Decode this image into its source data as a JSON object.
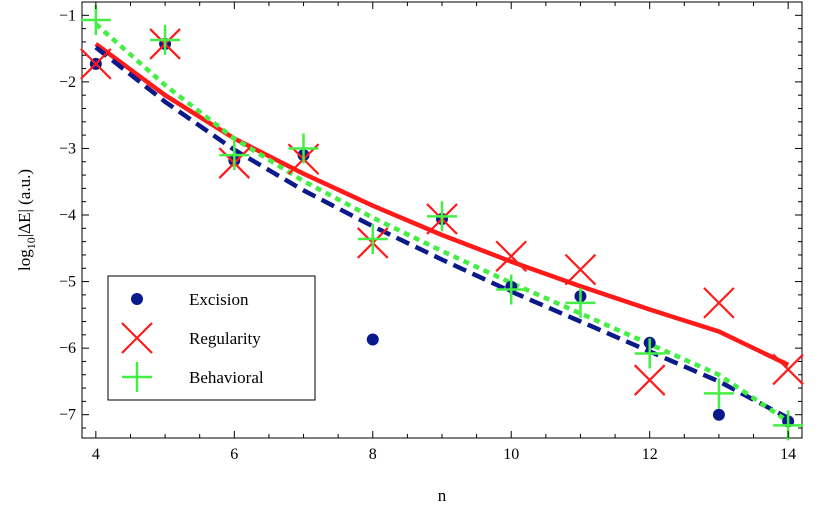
{
  "chart_data": {
    "type": "scatter",
    "title": "",
    "xlabel": "n",
    "ylabel": "log₁₀|ΔE| (a.u.)",
    "ylabel_parts": {
      "pre": "log",
      "sub": "10",
      "post": "|ΔE| (a.u.)"
    },
    "xlim": [
      3.8,
      14.2
    ],
    "ylim": [
      -7.35,
      -0.8
    ],
    "xticks": [
      4,
      6,
      8,
      10,
      12,
      14
    ],
    "yticks": [
      -7,
      -6,
      -5,
      -4,
      -3,
      -2,
      -1
    ],
    "xtick_labels": [
      "4",
      "6",
      "8",
      "10",
      "12",
      "14"
    ],
    "ytick_labels": [
      "−7",
      "−6",
      "−5",
      "−4",
      "−3",
      "−2",
      "−1"
    ],
    "grid": false,
    "legend_position": "bottom-left",
    "series": [
      {
        "name": "Excision",
        "marker": "dot",
        "color": "#0a1a8c",
        "x": [
          4,
          5,
          6,
          7,
          8,
          9,
          10,
          11,
          12,
          13,
          14
        ],
        "y": [
          -1.73,
          -1.43,
          -3.18,
          -3.1,
          -5.87,
          -4.06,
          -5.08,
          -5.22,
          -5.92,
          -7.0,
          -7.1
        ]
      },
      {
        "name": "Regularity",
        "marker": "x",
        "color": "#ff1a1a",
        "x": [
          4,
          5,
          6,
          7,
          8,
          9,
          10,
          11,
          12,
          13,
          14
        ],
        "y": [
          -1.73,
          -1.43,
          -3.22,
          -3.16,
          -4.42,
          -4.06,
          -4.62,
          -4.82,
          -6.48,
          -5.32,
          -6.32
        ]
      },
      {
        "name": "Behavioral",
        "marker": "plus",
        "color": "#44ee44",
        "x": [
          4,
          5,
          6,
          7,
          8,
          9,
          10,
          11,
          12,
          13,
          14
        ],
        "y": [
          -1.07,
          -1.37,
          -3.1,
          -3.0,
          -4.36,
          -4.02,
          -5.12,
          -5.32,
          -6.08,
          -6.68,
          -7.16
        ]
      }
    ],
    "fit_lines": [
      {
        "series": "Regularity",
        "style": "solid",
        "color": "#ff1a1a",
        "x": [
          4,
          5,
          6,
          7,
          8,
          9,
          10,
          11,
          12,
          13,
          14
        ],
        "y": [
          -1.43,
          -2.2,
          -2.85,
          -3.38,
          -3.86,
          -4.3,
          -4.7,
          -5.07,
          -5.42,
          -5.75,
          -6.25
        ]
      },
      {
        "series": "Excision",
        "style": "dashed",
        "color": "#0a1a8c",
        "x": [
          4,
          5,
          6,
          7,
          8,
          9,
          10,
          11,
          12,
          13,
          14
        ],
        "y": [
          -1.48,
          -2.3,
          -3.02,
          -3.63,
          -4.17,
          -4.67,
          -5.15,
          -5.6,
          -6.05,
          -6.5,
          -7.05
        ]
      },
      {
        "series": "Behavioral",
        "style": "dotted",
        "color": "#44ee44",
        "x": [
          4,
          5,
          6,
          7,
          8,
          9,
          10,
          11,
          12,
          13,
          14
        ],
        "y": [
          -1.13,
          -2.05,
          -2.85,
          -3.49,
          -4.04,
          -4.54,
          -5.02,
          -5.48,
          -5.94,
          -6.4,
          -7.1
        ]
      }
    ]
  }
}
